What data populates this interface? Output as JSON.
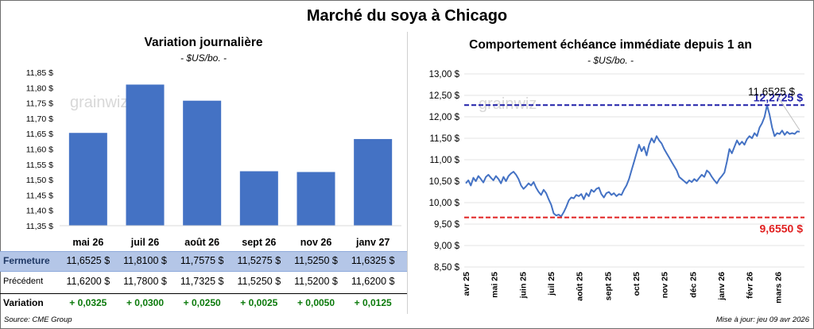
{
  "title": "Marché du soya à Chicago",
  "left_panel": {
    "title": "Variation journalière",
    "unit": "- $US/bo. -",
    "table": {
      "rows": [
        {
          "label": "Fermeture",
          "values": [
            "11,6525  $",
            "11,8100  $",
            "11,7575  $",
            "11,5275  $",
            "11,5250  $",
            "11,6325  $"
          ]
        },
        {
          "label": "Précédent",
          "values": [
            "11,6200  $",
            "11,7800  $",
            "11,7325  $",
            "11,5250  $",
            "11,5200  $",
            "11,6200  $"
          ]
        },
        {
          "label": "Variation",
          "values": [
            "+ 0,0325",
            "+ 0,0300",
            "+ 0,0250",
            "+ 0,0025",
            "+ 0,0050",
            "+ 0,0125"
          ]
        }
      ]
    }
  },
  "right_panel": {
    "title": "Comportement  échéance immédiate depuis 1 an",
    "unit": "- $US/bo. -"
  },
  "footer": {
    "source": "Source: CME Group",
    "updated": "Mise à jour: jeu 09 avr 2026"
  },
  "watermark": "grainwiz",
  "colors": {
    "bar": "#4472c4",
    "line": "#4472c4",
    "max_line": "#1f1fa8",
    "min_line": "#e02020",
    "close_row_bg": "#b4c6e7",
    "variation_text": "#0b7a0b"
  },
  "chart_data": [
    {
      "type": "bar",
      "title": "Variation journalière",
      "categories": [
        "mai 26",
        "juil 26",
        "août 26",
        "sept 26",
        "nov 26",
        "janv 27"
      ],
      "values": [
        11.6525,
        11.81,
        11.7575,
        11.5275,
        11.525,
        11.6325
      ],
      "ylim": [
        11.35,
        11.85
      ],
      "yticks": [
        11.35,
        11.4,
        11.45,
        11.5,
        11.55,
        11.6,
        11.65,
        11.7,
        11.75,
        11.8,
        11.85
      ],
      "ytick_labels": [
        "11,35 $",
        "11,40 $",
        "11,45 $",
        "11,50 $",
        "11,55 $",
        "11,60 $",
        "11,65 $",
        "11,70 $",
        "11,75 $",
        "11,80 $",
        "11,85 $"
      ],
      "grid": false
    },
    {
      "type": "line",
      "title": "Comportement  échéance immédiate depuis 1 an",
      "ylim": [
        8.5,
        13.0
      ],
      "yticks": [
        8.5,
        9.0,
        9.5,
        10.0,
        10.5,
        11.0,
        11.5,
        12.0,
        12.5,
        13.0
      ],
      "ytick_labels": [
        "8,50 $",
        "9,00 $",
        "9,50 $",
        "10,00 $",
        "10,50 $",
        "11,00 $",
        "11,50 $",
        "12,00 $",
        "12,50 $",
        "13,00 $"
      ],
      "x_labels": [
        "avr 25",
        "mai 25",
        "juin 25",
        "juil 25",
        "août 25",
        "sept 25",
        "oct 25",
        "nov 25",
        "déc 25",
        "janv 26",
        "févr 26",
        "mars 26"
      ],
      "series": [
        {
          "values": [
            10.45,
            10.52,
            10.4,
            10.58,
            10.5,
            10.62,
            10.55,
            10.47,
            10.6,
            10.65,
            10.58,
            10.52,
            10.62,
            10.55,
            10.45,
            10.6,
            10.5,
            10.62,
            10.68,
            10.72,
            10.65,
            10.55,
            10.4,
            10.32,
            10.38,
            10.45,
            10.4,
            10.48,
            10.35,
            10.25,
            10.18,
            10.3,
            10.22,
            10.08,
            9.95,
            9.75,
            9.7,
            9.72,
            9.68,
            9.78,
            9.9,
            10.05,
            10.12,
            10.1,
            10.18,
            10.15,
            10.2,
            10.08,
            10.22,
            10.15,
            10.3,
            10.25,
            10.32,
            10.35,
            10.2,
            10.12,
            10.22,
            10.25,
            10.18,
            10.22,
            10.15,
            10.2,
            10.18,
            10.3,
            10.4,
            10.55,
            10.75,
            10.95,
            11.15,
            11.35,
            11.2,
            11.3,
            11.1,
            11.35,
            11.5,
            11.4,
            11.55,
            11.45,
            11.38,
            11.25,
            11.15,
            11.05,
            10.95,
            10.85,
            10.75,
            10.6,
            10.55,
            10.5,
            10.45,
            10.52,
            10.48,
            10.55,
            10.5,
            10.58,
            10.65,
            10.6,
            10.75,
            10.7,
            10.6,
            10.52,
            10.45,
            10.55,
            10.62,
            10.7,
            10.95,
            11.25,
            11.15,
            11.3,
            11.45,
            11.35,
            11.42,
            11.35,
            11.48,
            11.55,
            11.5,
            11.62,
            11.55,
            11.75,
            11.85,
            12.0,
            12.27,
            12.05,
            11.75,
            11.55,
            11.62,
            11.6,
            11.68,
            11.58,
            11.65,
            11.6,
            11.62,
            11.6,
            11.66,
            11.6525
          ]
        }
      ],
      "reference_lines": [
        {
          "name": "max",
          "value": 12.2725,
          "label": "12,2725 $"
        },
        {
          "name": "min",
          "value": 9.655,
          "label": "9,6550 $"
        }
      ],
      "annotations": [
        {
          "text": "11,6525 $",
          "value": 11.6525
        }
      ]
    }
  ]
}
